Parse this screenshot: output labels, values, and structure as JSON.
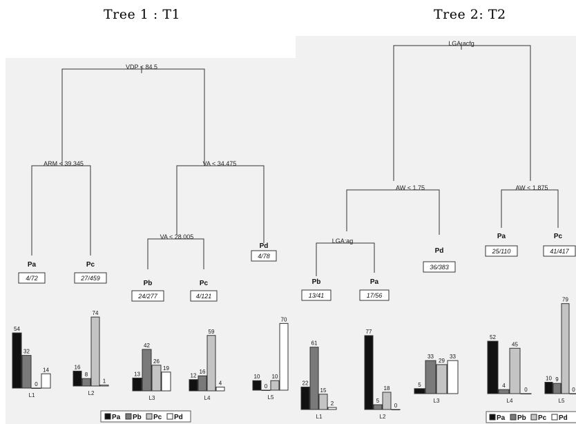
{
  "titles": {
    "tree1": "Tree 1 : T1",
    "tree2": "Tree 2: T2"
  },
  "colors": {
    "Pa": "#111111",
    "Pb": "#7a7a7a",
    "Pc": "#c4c4c4",
    "Pd": "#ffffff",
    "line": "#333333"
  },
  "legend": [
    "Pa",
    "Pb",
    "Pc",
    "Pd"
  ],
  "tree1": {
    "splits": {
      "root": "VDP < 84.5",
      "left": "ARM < 39.345",
      "right": "VA < 34.475",
      "right_left": "VA < 28.005"
    },
    "nodes": {
      "n1": {
        "cls": "Pa",
        "count": "4/72"
      },
      "n2": {
        "cls": "Pc",
        "count": "27/459"
      },
      "n3": {
        "cls": "Pb",
        "count": "24/277"
      },
      "n4": {
        "cls": "Pc",
        "count": "4/121"
      },
      "n5": {
        "cls": "Pd",
        "count": "4/78"
      }
    },
    "leaves": [
      {
        "name": "L1",
        "values": [
          54,
          32,
          0,
          14
        ]
      },
      {
        "name": "L2",
        "values": [
          16,
          8,
          74,
          1
        ]
      },
      {
        "name": "L3",
        "values": [
          13,
          42,
          26,
          19
        ]
      },
      {
        "name": "L4",
        "values": [
          12,
          16,
          59,
          4
        ]
      },
      {
        "name": "L5",
        "values": [
          10,
          0,
          10,
          70
        ]
      }
    ]
  },
  "tree2": {
    "splits": {
      "root": "LGA:acfg",
      "left": "AW < 1.75",
      "right": "AW < 1.875",
      "left_left": "LGA:ag"
    },
    "nodes": {
      "n1": {
        "cls": "Pb",
        "count": "13/41"
      },
      "n2": {
        "cls": "Pa",
        "count": "17/56"
      },
      "n3": {
        "cls": "Pd",
        "count": "36/383"
      },
      "n4": {
        "cls": "Pa",
        "count": "25/110"
      },
      "n5": {
        "cls": "Pc",
        "count": "41/417"
      }
    },
    "leaves": [
      {
        "name": "L1",
        "values": [
          22,
          61,
          15,
          2
        ]
      },
      {
        "name": "L2",
        "values": [
          77,
          5,
          18,
          0
        ]
      },
      {
        "name": "L3",
        "values": [
          5,
          33,
          29,
          33
        ]
      },
      {
        "name": "L4",
        "values": [
          52,
          4,
          45,
          0
        ]
      },
      {
        "name": "L5",
        "values": [
          10,
          9,
          79,
          0
        ]
      }
    ]
  }
}
